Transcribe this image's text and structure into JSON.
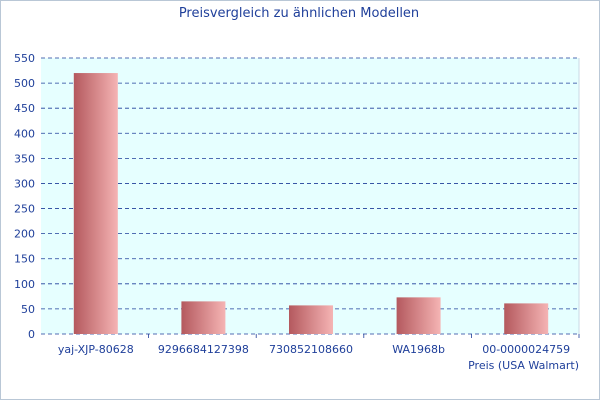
{
  "chart_data": {
    "type": "bar",
    "title": "Preisvergleich zu ähnlichen Modellen",
    "categories": [
      "yaj-XJP-80628",
      "9296684127398",
      "730852108660",
      "WA1968b",
      "00-0000024759"
    ],
    "values": [
      520,
      65,
      57,
      73,
      61
    ],
    "xlabel": "Preis (USA Walmart)",
    "ylabel": "",
    "ylim": [
      0,
      550
    ],
    "yticks": [
      0,
      50,
      100,
      150,
      200,
      250,
      300,
      350,
      400,
      450,
      500,
      550
    ],
    "grid": true,
    "grid_style": "dashed",
    "legend": "none"
  },
  "colors": {
    "plot_background": "#e6ffff",
    "grid_line": "#1f3f9a",
    "text": "#1f3f9a",
    "bar_dark": "#b4595e",
    "bar_light": "#f5b4b4"
  }
}
